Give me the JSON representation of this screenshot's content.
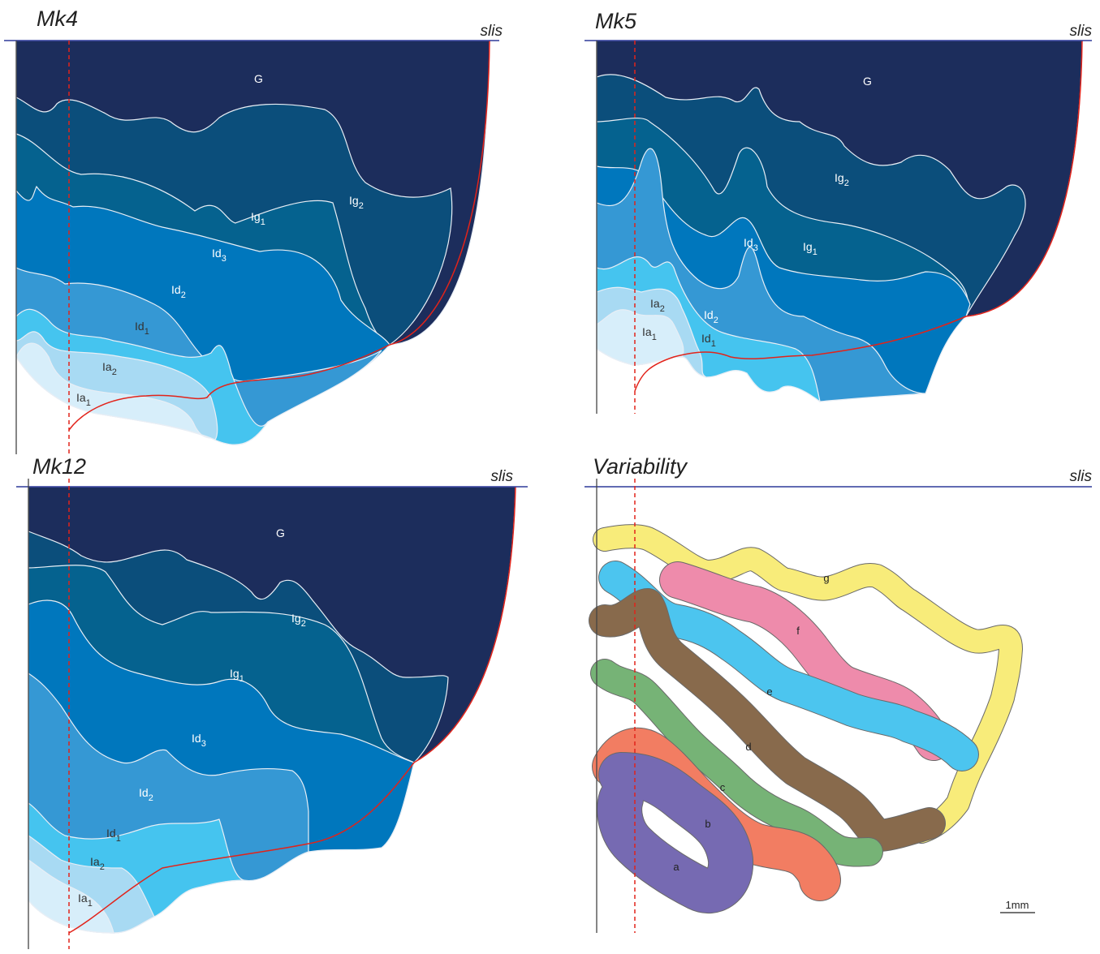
{
  "panels": [
    {
      "title": "Mk4",
      "reference": "slis",
      "labels": [
        {
          "base": "G"
        },
        {
          "base": "Ig",
          "sub": "2"
        },
        {
          "base": "Ig",
          "sub": "1"
        },
        {
          "base": "Id",
          "sub": "3"
        },
        {
          "base": "Id",
          "sub": "2"
        },
        {
          "base": "Id",
          "sub": "1"
        },
        {
          "base": "Ia",
          "sub": "2"
        },
        {
          "base": "Ia",
          "sub": "1"
        }
      ]
    },
    {
      "title": "Mk5",
      "reference": "slis",
      "labels": [
        {
          "base": "G"
        },
        {
          "base": "Ig",
          "sub": "2"
        },
        {
          "base": "Ig",
          "sub": "1"
        },
        {
          "base": "Id",
          "sub": "3"
        },
        {
          "base": "Id",
          "sub": "2"
        },
        {
          "base": "Id",
          "sub": "1"
        },
        {
          "base": "Ia",
          "sub": "2"
        },
        {
          "base": "Ia",
          "sub": "1"
        }
      ]
    },
    {
      "title": "Mk12",
      "reference": "slis",
      "labels": [
        {
          "base": "G"
        },
        {
          "base": "Ig",
          "sub": "2"
        },
        {
          "base": "Ig",
          "sub": "1"
        },
        {
          "base": "Id",
          "sub": "3"
        },
        {
          "base": "Id",
          "sub": "2"
        },
        {
          "base": "Id",
          "sub": "1"
        },
        {
          "base": "Ia",
          "sub": "2"
        },
        {
          "base": "Ia",
          "sub": "1"
        }
      ]
    },
    {
      "title": "Variability",
      "reference": "slis",
      "labels": [
        "g",
        "f",
        "e",
        "d",
        "c",
        "b",
        "a"
      ],
      "scale_bar": "1mm"
    }
  ]
}
